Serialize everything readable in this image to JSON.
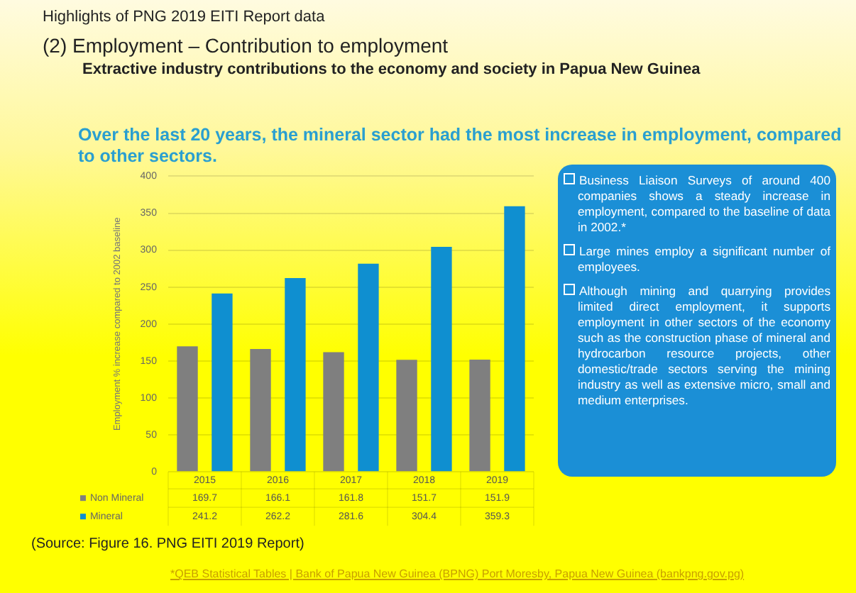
{
  "chart_data": {
    "type": "bar",
    "title": "Highlights of PNG 2019 EITI Report data",
    "subtitle": "(2) Employment – Contribution to employment",
    "ylabel": "Employment % increase compared to 2002 baseline",
    "categories": [
      "2015",
      "2016",
      "2017",
      "2018",
      "2019"
    ],
    "series": [
      {
        "name": "Non Mineral",
        "color": "#7f7f7f",
        "values": [
          169.7,
          166.1,
          161.8,
          151.7,
          151.9
        ]
      },
      {
        "name": "Mineral",
        "color": "#0f8fd0",
        "values": [
          241.2,
          262.2,
          281.6,
          304.4,
          359.3
        ]
      }
    ],
    "ylim": [
      0,
      400
    ],
    "yticks": [
      0,
      50,
      100,
      150,
      200,
      250,
      300,
      350,
      400
    ],
    "grid": "y",
    "legend": "bottom",
    "data_labels": true,
    "annotations": [
      "Extractive industry contributions to the economy and society in Papua New Guinea",
      "Over the last 20 years, the mineral sector had the most increase in employment, compared to other sectors.",
      "Business Liaison Surveys of around 400 companies shows a steady increase in employment, compared to the baseline of data in 2002.*",
      "Large mines employ a significant number of employees.",
      "Although mining and quarrying provides limited direct employment, it supports employment in other sectors of the economy such as the construction phase of mineral and hydrocarbon resource projects, other domestic/trade sectors serving the mining industry as well as extensive micro, small and medium enterprises.",
      "(Source: Figure 16. PNG EITI 2019 Report)",
      "*QEB Statistical Tables | Bank of Papua New Guinea (BPNG) Port Moresby, Papua New Guinea (bankpng.gov.pg)"
    ]
  }
}
